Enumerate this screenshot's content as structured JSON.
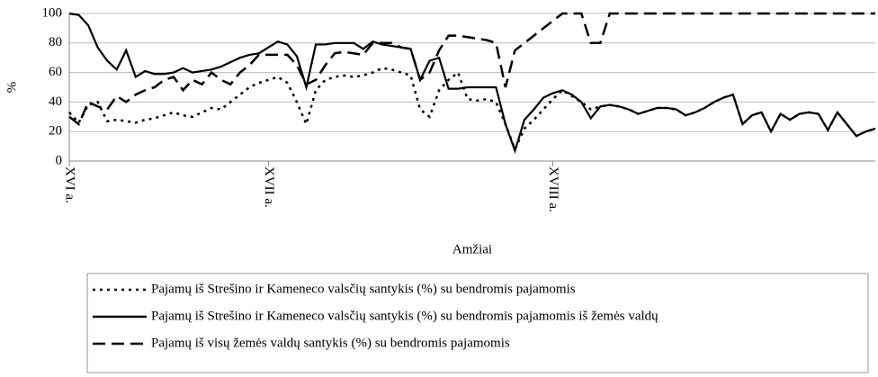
{
  "chart_data": {
    "type": "line",
    "y_label": "%",
    "x_label": "Amžiai",
    "categories": [
      "XVI a.",
      null,
      null,
      null,
      null,
      null,
      null,
      null,
      null,
      null,
      null,
      null,
      null,
      null,
      null,
      null,
      null,
      null,
      null,
      null,
      null,
      "XVII a.",
      null,
      null,
      null,
      null,
      null,
      null,
      null,
      null,
      null,
      null,
      null,
      null,
      null,
      null,
      null,
      null,
      null,
      null,
      null,
      null,
      null,
      null,
      null,
      null,
      null,
      null,
      null,
      null,
      null,
      "XVIII a.",
      null,
      null,
      null,
      null,
      null,
      null,
      null,
      null,
      null,
      null,
      null,
      null,
      null,
      null,
      null,
      null,
      null,
      null,
      null,
      null,
      null,
      null,
      null,
      null,
      null,
      null,
      null,
      null,
      null,
      null,
      null,
      null,
      null,
      null
    ],
    "series": [
      {
        "name": "Pajamų iš Strešino ir Kameneco valsčių santykis (%) su bendromis pajamomis",
        "color": "#000000",
        "dash": "dotted",
        "values": [
          33,
          26,
          38,
          40,
          27,
          28,
          27,
          26,
          28,
          29,
          31,
          33,
          31,
          30,
          33,
          36,
          35,
          40,
          45,
          50,
          53,
          55,
          57,
          53,
          40,
          25,
          48,
          55,
          57,
          58,
          57,
          58,
          60,
          63,
          62,
          60,
          58,
          35,
          30,
          48,
          55,
          60,
          42,
          41,
          42,
          40,
          25,
          8,
          22,
          28,
          35,
          42,
          48,
          44,
          40,
          35,
          37,
          38,
          37,
          35,
          32,
          34,
          36,
          36,
          35,
          31,
          33,
          36,
          40,
          43,
          45,
          25,
          31,
          33,
          20,
          32,
          28,
          32,
          33,
          32,
          21,
          33,
          25,
          17,
          20,
          22
        ]
      },
      {
        "name": "Pajamų iš Strešino ir Kameneco valsčių santykis (%) su bendromis pajamomis iš žemės valdų",
        "color": "#000000",
        "dash": "solid",
        "values": [
          100,
          99,
          92,
          77,
          68,
          62,
          75,
          57,
          61,
          59,
          59,
          60,
          63,
          60,
          61,
          62,
          64,
          67,
          70,
          72,
          73,
          77,
          81,
          79,
          71,
          50,
          79,
          79,
          80,
          80,
          80,
          76,
          81,
          79,
          78,
          77,
          76,
          55,
          68,
          70,
          49,
          49,
          50,
          50,
          50,
          50,
          25,
          7,
          28,
          35,
          43,
          46,
          48,
          45,
          40,
          29,
          37,
          38,
          37,
          35,
          32,
          34,
          36,
          36,
          35,
          31,
          33,
          36,
          40,
          43,
          45,
          25,
          31,
          33,
          20,
          32,
          28,
          32,
          33,
          32,
          21,
          33,
          25,
          17,
          20,
          22
        ]
      },
      {
        "name": "Pajamų iš visų žemės valdų santykis (%) su bendromis pajamomis",
        "color": "#000000",
        "dash": "dashed",
        "values": [
          30,
          25,
          40,
          37,
          35,
          44,
          40,
          45,
          48,
          50,
          55,
          57,
          48,
          55,
          52,
          60,
          55,
          52,
          60,
          65,
          72,
          72,
          72,
          72,
          65,
          52,
          55,
          65,
          73,
          74,
          73,
          72,
          80,
          80,
          80,
          77,
          76,
          55,
          60,
          75,
          85,
          85,
          84,
          83,
          82,
          80,
          50,
          75,
          80,
          85,
          90,
          95,
          100,
          100,
          100,
          80,
          80,
          100,
          100,
          100,
          100,
          100,
          100,
          100,
          100,
          100,
          100,
          100,
          100,
          100,
          100,
          100,
          100,
          100,
          100,
          100,
          100,
          100,
          100,
          100,
          100,
          100,
          100,
          100,
          100,
          100
        ]
      }
    ],
    "ylim": [
      0,
      100
    ],
    "yticks": [
      0,
      20,
      40,
      60,
      80,
      100
    ],
    "grid": true
  }
}
